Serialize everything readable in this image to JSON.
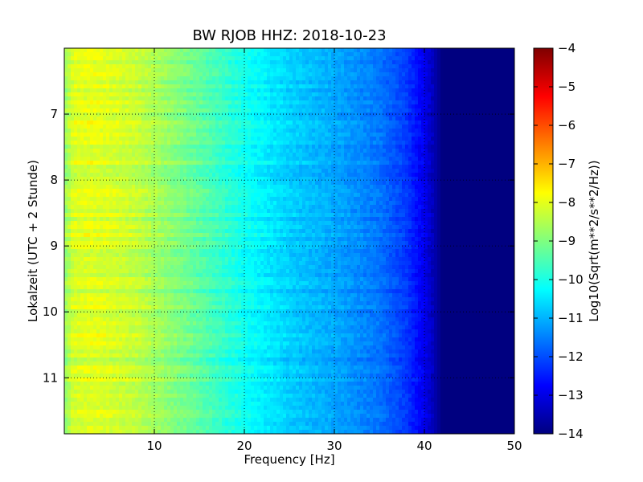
{
  "chart_data": {
    "type": "heatmap",
    "title": "BW RJOB HHZ: 2018-10-23",
    "xlabel": "Frequency [Hz]",
    "ylabel": "Lokalzeit (UTC + 2 Stunde)",
    "colorbar_label": "Log10(Sqrt(m**2/s**2/Hz))",
    "colormap": "jet",
    "xlim": [
      0,
      50
    ],
    "ylim": [
      6.0,
      11.85
    ],
    "y_inverted": true,
    "x_ticks": [
      "10",
      "20",
      "30",
      "40",
      "50"
    ],
    "x_tick_values": [
      10,
      20,
      30,
      40,
      50
    ],
    "y_ticks": [
      "7",
      "8",
      "9",
      "10",
      "11"
    ],
    "y_tick_values": [
      7,
      8,
      9,
      10,
      11
    ],
    "colorbar_range": [
      -14,
      -4
    ],
    "colorbar_ticks": [
      "−4",
      "−5",
      "−6",
      "−7",
      "−8",
      "−9",
      "−10",
      "−11",
      "−12",
      "−13",
      "−14"
    ],
    "colorbar_tick_values": [
      -4,
      -5,
      -6,
      -7,
      -8,
      -9,
      -10,
      -11,
      -12,
      -13,
      -14
    ],
    "grid": true,
    "value_profile": {
      "frequency_hz": [
        0,
        1,
        3,
        5,
        8,
        10,
        15,
        20,
        25,
        30,
        35,
        38,
        40,
        42,
        45,
        50
      ],
      "log_amplitude": [
        -8.8,
        -8.1,
        -8.0,
        -8.1,
        -8.3,
        -8.6,
        -9.3,
        -10.1,
        -10.7,
        -11.1,
        -11.6,
        -12.2,
        -12.9,
        -14.0,
        -14.0,
        -14.0
      ]
    }
  }
}
